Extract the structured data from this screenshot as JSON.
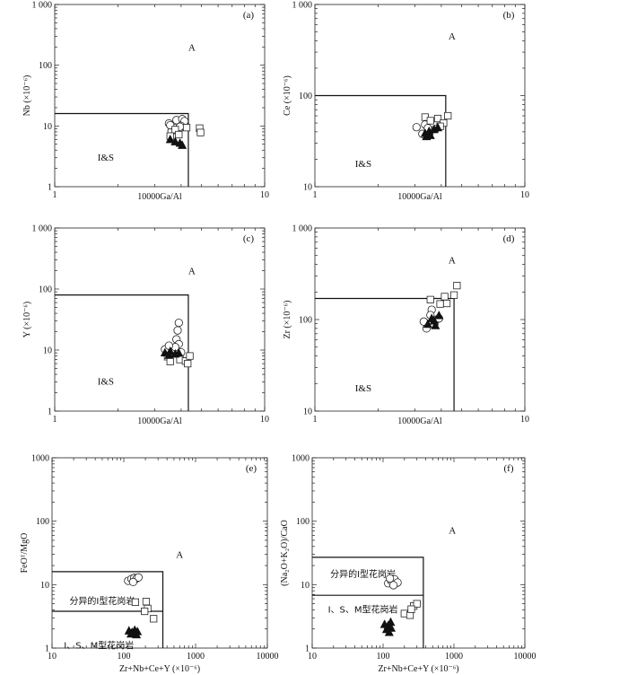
{
  "chart_data": [
    {
      "id": "a",
      "type": "scatter",
      "panel_label": "(a)",
      "xlabel": "10000Ga/Al",
      "ylabel": "Nb (×10⁻⁶)",
      "xscale": "log",
      "yscale": "log",
      "xlim": [
        1,
        10
      ],
      "ylim": [
        1,
        1000
      ],
      "xticks": [
        "1",
        "10"
      ],
      "yticks": [
        "1",
        "10",
        "100",
        "1 000"
      ],
      "field_labels": [
        {
          "text": "A",
          "x": 4.5,
          "y": 200
        },
        {
          "text": "I&S",
          "x": 1.75,
          "y": 3.1
        }
      ],
      "boundaries": [
        {
          "x": [
            1,
            4.33,
            4.33
          ],
          "y": [
            16,
            16,
            1
          ]
        }
      ],
      "series": [
        {
          "marker": "circle",
          "points": [
            [
              3.5,
              11
            ],
            [
              3.8,
              12.5
            ],
            [
              4.05,
              13
            ],
            [
              4.15,
              12
            ],
            [
              4.0,
              10
            ],
            [
              3.7,
              9.3
            ],
            [
              3.9,
              8.8
            ],
            [
              3.6,
              8.2
            ],
            [
              3.95,
              9.7
            ],
            [
              3.55,
              10.3
            ]
          ]
        },
        {
          "marker": "square",
          "points": [
            [
              3.75,
              8.7
            ],
            [
              4.25,
              9.4
            ],
            [
              4.9,
              9.2
            ],
            [
              4.95,
              7.8
            ],
            [
              3.55,
              6.8
            ],
            [
              3.9,
              7.2
            ]
          ]
        },
        {
          "marker": "triangle",
          "points": [
            [
              3.55,
              6.1
            ],
            [
              3.75,
              5.6
            ],
            [
              3.95,
              5.3
            ],
            [
              4.05,
              4.9
            ]
          ]
        }
      ]
    },
    {
      "id": "b",
      "type": "scatter",
      "panel_label": "(b)",
      "xlabel": "10000Ga/Al",
      "ylabel": "Ce (×10⁻⁶)",
      "xscale": "log",
      "yscale": "log",
      "xlim": [
        1,
        10
      ],
      "ylim": [
        10,
        1000
      ],
      "xticks": [
        "1",
        "10"
      ],
      "yticks": [
        "10",
        "100",
        "1 000"
      ],
      "field_labels": [
        {
          "text": "A",
          "x": 4.5,
          "y": 450
        },
        {
          "text": "I&S",
          "x": 1.7,
          "y": 18
        }
      ],
      "boundaries": [
        {
          "x": [
            1,
            4.2,
            4.2
          ],
          "y": [
            100,
            100,
            10
          ]
        }
      ],
      "series": [
        {
          "marker": "circle",
          "points": [
            [
              3.05,
              45
            ],
            [
              3.35,
              48
            ],
            [
              3.55,
              41
            ],
            [
              3.25,
              38
            ],
            [
              3.75,
              43
            ],
            [
              3.45,
              44
            ]
          ]
        },
        {
          "marker": "square",
          "points": [
            [
              3.35,
              58
            ],
            [
              3.55,
              53
            ],
            [
              3.85,
              56
            ],
            [
              4.1,
              50
            ],
            [
              4.3,
              60
            ],
            [
              3.95,
              46
            ]
          ]
        },
        {
          "marker": "triangle",
          "points": [
            [
              3.35,
              39
            ],
            [
              3.5,
              41
            ],
            [
              3.7,
              43
            ],
            [
              3.85,
              45
            ],
            [
              3.55,
              37
            ],
            [
              3.4,
              36
            ]
          ]
        }
      ]
    },
    {
      "id": "c",
      "type": "scatter",
      "panel_label": "(c)",
      "xlabel": "10000Ga/Al",
      "ylabel": "Y (×10⁻⁶)",
      "xscale": "log",
      "yscale": "log",
      "xlim": [
        1,
        10
      ],
      "ylim": [
        1,
        1000
      ],
      "xticks": [
        "1",
        "10"
      ],
      "yticks": [
        "1",
        "10",
        "100",
        "1 000"
      ],
      "field_labels": [
        {
          "text": "A",
          "x": 4.5,
          "y": 200
        },
        {
          "text": "I&S",
          "x": 1.75,
          "y": 3.1
        }
      ],
      "boundaries": [
        {
          "x": [
            1,
            4.33,
            4.33
          ],
          "y": [
            80,
            80,
            1
          ]
        }
      ],
      "series": [
        {
          "marker": "circle",
          "points": [
            [
              3.9,
              28
            ],
            [
              3.85,
              21
            ],
            [
              3.8,
              15
            ],
            [
              3.9,
              12.5
            ],
            [
              3.35,
              10.3
            ],
            [
              3.75,
              11.2
            ],
            [
              3.5,
              11.8
            ],
            [
              4.0,
              9.2
            ]
          ]
        },
        {
          "marker": "square",
          "points": [
            [
              3.45,
              7.8
            ],
            [
              3.95,
              7.0
            ],
            [
              4.2,
              6.6
            ],
            [
              4.4,
              8.0
            ],
            [
              3.55,
              6.5
            ],
            [
              4.3,
              6.0
            ]
          ]
        },
        {
          "marker": "triangle",
          "points": [
            [
              3.35,
              9.2
            ],
            [
              3.55,
              9.7
            ],
            [
              3.75,
              8.8
            ],
            [
              3.5,
              8.4
            ],
            [
              3.9,
              9.1
            ]
          ]
        }
      ]
    },
    {
      "id": "d",
      "type": "scatter",
      "panel_label": "(d)",
      "xlabel": "10000Ga/Al",
      "ylabel": "Zr (×10⁻⁶)",
      "xscale": "log",
      "yscale": "log",
      "xlim": [
        1,
        10
      ],
      "ylim": [
        10,
        1000
      ],
      "xticks": [
        "1",
        "10"
      ],
      "yticks": [
        "10",
        "100",
        "1 000"
      ],
      "field_labels": [
        {
          "text": "A",
          "x": 4.5,
          "y": 450
        },
        {
          "text": "I&S",
          "x": 1.7,
          "y": 18
        }
      ],
      "boundaries": [
        {
          "x": [
            1,
            4.6,
            4.6
          ],
          "y": [
            170,
            170,
            10
          ]
        }
      ],
      "series": [
        {
          "marker": "circle",
          "points": [
            [
              3.6,
              128
            ],
            [
              3.3,
              95
            ],
            [
              3.55,
              112
            ],
            [
              3.8,
              100
            ],
            [
              3.4,
              80
            ],
            [
              3.7,
              88
            ],
            [
              3.9,
              103
            ]
          ]
        },
        {
          "marker": "square",
          "points": [
            [
              3.55,
              165
            ],
            [
              3.95,
              148
            ],
            [
              4.15,
              178
            ],
            [
              4.25,
              150
            ],
            [
              4.6,
              185
            ],
            [
              4.75,
              235
            ]
          ]
        },
        {
          "marker": "triangle",
          "points": [
            [
              3.45,
              90
            ],
            [
              3.7,
              98
            ],
            [
              3.9,
              112
            ],
            [
              3.6,
              104
            ],
            [
              3.75,
              87
            ]
          ]
        }
      ]
    },
    {
      "id": "e",
      "type": "scatter",
      "panel_label": "(e)",
      "xlabel": "Zr+Nb+Ce+Y (×10⁻⁶)",
      "ylabel": "FeOᵀ/MgO",
      "xscale": "log",
      "yscale": "log",
      "xlim": [
        10,
        10000
      ],
      "ylim": [
        1,
        1000
      ],
      "xticks": [
        "10",
        "100",
        "1000",
        "10000"
      ],
      "yticks": [
        "1",
        "10",
        "100",
        "1000"
      ],
      "field_labels": [
        {
          "text": "A",
          "x": 600,
          "y": 30
        },
        {
          "text": "分异的I型花岗岩",
          "x": 50,
          "y": 5.6
        },
        {
          "text": "I、S、M型花岗岩",
          "x": 45,
          "y": 1.12
        }
      ],
      "boundaries": [
        {
          "x": [
            10,
            350,
            350
          ],
          "y": [
            16,
            16,
            1
          ]
        },
        {
          "x": [
            10,
            350
          ],
          "y": [
            3.8,
            3.8
          ]
        }
      ],
      "series": [
        {
          "marker": "circle",
          "points": [
            [
              115,
              11.5
            ],
            [
              128,
              12.3
            ],
            [
              140,
              12.8
            ],
            [
              150,
              12.5
            ],
            [
              160,
              13.0
            ],
            [
              135,
              11.0
            ]
          ]
        },
        {
          "marker": "square",
          "points": [
            [
              145,
              5.3
            ],
            [
              205,
              5.4
            ],
            [
              215,
              4.2
            ],
            [
              195,
              3.8
            ],
            [
              260,
              2.9
            ]
          ]
        },
        {
          "marker": "triangle",
          "points": [
            [
              118,
              1.9
            ],
            [
              130,
              1.8
            ],
            [
              142,
              1.95
            ],
            [
              155,
              1.85
            ],
            [
              126,
              1.7
            ],
            [
              150,
              1.65
            ]
          ]
        }
      ]
    },
    {
      "id": "f",
      "type": "scatter",
      "panel_label": "(f)",
      "xlabel": "Zr+Nb+Ce+Y (×10⁻⁶)",
      "ylabel": "(Na₂O+K₂O)/CaO",
      "xscale": "log",
      "yscale": "log",
      "xlim": [
        10,
        10000
      ],
      "ylim": [
        1,
        1000
      ],
      "xticks": [
        "10",
        "100",
        "1000",
        "10000"
      ],
      "yticks": [
        "1",
        "10",
        "100",
        "1000"
      ],
      "field_labels": [
        {
          "text": "A",
          "x": 950,
          "y": 72
        },
        {
          "text": "分异的I型花岗岩",
          "x": 52,
          "y": 15
        },
        {
          "text": "I、S、M型花岗岩",
          "x": 52,
          "y": 4.1
        }
      ],
      "boundaries": [
        {
          "x": [
            10,
            370,
            370
          ],
          "y": [
            27,
            27,
            1
          ]
        },
        {
          "x": [
            10,
            370
          ],
          "y": [
            6.8,
            6.8
          ]
        }
      ],
      "series": [
        {
          "marker": "circle",
          "points": [
            [
              118,
              10.5
            ],
            [
              130,
              11.5
            ],
            [
              145,
              12.2
            ],
            [
              160,
              10.8
            ],
            [
              140,
              9.8
            ],
            [
              125,
              12.5
            ]
          ]
        },
        {
          "marker": "square",
          "points": [
            [
              200,
              3.5
            ],
            [
              270,
              4.6
            ],
            [
              300,
              5.0
            ],
            [
              240,
              3.3
            ],
            [
              250,
              4.1
            ]
          ]
        },
        {
          "marker": "triangle",
          "points": [
            [
              105,
              2.4
            ],
            [
              118,
              2.3
            ],
            [
              128,
              2.6
            ],
            [
              112,
              2.0
            ],
            [
              130,
              2.1
            ],
            [
              122,
              1.8
            ]
          ]
        }
      ]
    }
  ]
}
